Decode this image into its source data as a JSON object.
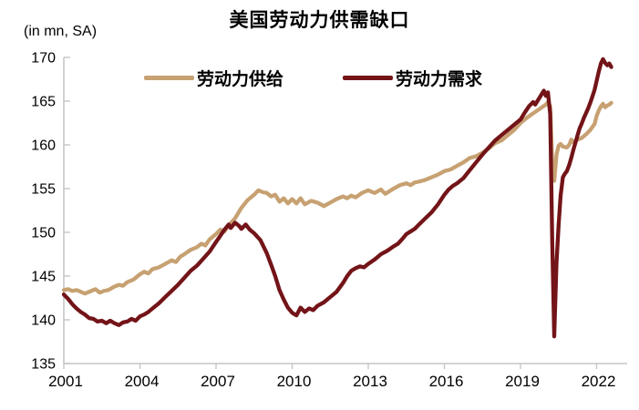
{
  "title": "美国劳动力供需缺口",
  "unit_label": "(in mn, SA)",
  "legend": {
    "supply_label": "劳动力供给",
    "demand_label": "劳动力需求"
  },
  "colors": {
    "supply": "#C7A172",
    "demand": "#731418",
    "axis": "#C6C6C6",
    "text": "#000000"
  },
  "chart_data": {
    "type": "line",
    "title": "美国劳动力供需缺口",
    "ylabel": "(in mn, SA)",
    "xlabel": "",
    "ylim": [
      135,
      170
    ],
    "ytick_step": 5,
    "yticks": [
      135,
      140,
      145,
      150,
      155,
      160,
      165,
      170
    ],
    "xticks": [
      2001,
      2004,
      2007,
      2010,
      2013,
      2016,
      2019,
      2022
    ],
    "xlim": [
      2001,
      2023.3
    ],
    "grid": false,
    "legend_position": "top",
    "series": [
      {
        "name": "劳动力供给",
        "color": "#C7A172",
        "points": [
          [
            2001.0,
            143.4
          ],
          [
            2001.17,
            143.5
          ],
          [
            2001.33,
            143.3
          ],
          [
            2001.5,
            143.4
          ],
          [
            2001.67,
            143.2
          ],
          [
            2001.83,
            143.0
          ],
          [
            2002.0,
            143.2
          ],
          [
            2002.25,
            143.5
          ],
          [
            2002.42,
            143.1
          ],
          [
            2002.58,
            143.3
          ],
          [
            2002.75,
            143.4
          ],
          [
            2003.0,
            143.8
          ],
          [
            2003.17,
            144.0
          ],
          [
            2003.33,
            143.9
          ],
          [
            2003.5,
            144.3
          ],
          [
            2003.75,
            144.6
          ],
          [
            2004.0,
            145.2
          ],
          [
            2004.17,
            145.5
          ],
          [
            2004.33,
            145.3
          ],
          [
            2004.5,
            145.8
          ],
          [
            2004.75,
            146.0
          ],
          [
            2005.0,
            146.4
          ],
          [
            2005.25,
            146.8
          ],
          [
            2005.42,
            146.6
          ],
          [
            2005.58,
            147.2
          ],
          [
            2005.75,
            147.5
          ],
          [
            2006.0,
            148.0
          ],
          [
            2006.25,
            148.3
          ],
          [
            2006.42,
            148.7
          ],
          [
            2006.58,
            148.5
          ],
          [
            2006.75,
            149.2
          ],
          [
            2007.0,
            149.8
          ],
          [
            2007.17,
            150.3
          ],
          [
            2007.33,
            150.1
          ],
          [
            2007.5,
            150.8
          ],
          [
            2007.75,
            151.6
          ],
          [
            2008.0,
            152.8
          ],
          [
            2008.25,
            153.7
          ],
          [
            2008.5,
            154.3
          ],
          [
            2008.67,
            154.8
          ],
          [
            2008.83,
            154.6
          ],
          [
            2009.0,
            154.5
          ],
          [
            2009.17,
            154.1
          ],
          [
            2009.33,
            154.3
          ],
          [
            2009.5,
            153.5
          ],
          [
            2009.67,
            153.9
          ],
          [
            2009.83,
            153.3
          ],
          [
            2010.0,
            153.8
          ],
          [
            2010.17,
            153.3
          ],
          [
            2010.33,
            153.9
          ],
          [
            2010.5,
            153.2
          ],
          [
            2010.75,
            153.6
          ],
          [
            2011.0,
            153.4
          ],
          [
            2011.25,
            153.0
          ],
          [
            2011.5,
            153.4
          ],
          [
            2011.75,
            153.8
          ],
          [
            2012.0,
            154.1
          ],
          [
            2012.17,
            153.9
          ],
          [
            2012.33,
            154.2
          ],
          [
            2012.5,
            154.0
          ],
          [
            2012.75,
            154.5
          ],
          [
            2013.0,
            154.8
          ],
          [
            2013.25,
            154.5
          ],
          [
            2013.5,
            154.9
          ],
          [
            2013.67,
            154.4
          ],
          [
            2013.83,
            154.7
          ],
          [
            2014.0,
            155.0
          ],
          [
            2014.25,
            155.4
          ],
          [
            2014.5,
            155.6
          ],
          [
            2014.67,
            155.4
          ],
          [
            2014.83,
            155.7
          ],
          [
            2015.0,
            155.8
          ],
          [
            2015.25,
            156.0
          ],
          [
            2015.5,
            156.3
          ],
          [
            2015.75,
            156.6
          ],
          [
            2016.0,
            157.0
          ],
          [
            2016.25,
            157.2
          ],
          [
            2016.5,
            157.6
          ],
          [
            2016.75,
            158.0
          ],
          [
            2017.0,
            158.5
          ],
          [
            2017.25,
            158.7
          ],
          [
            2017.5,
            159.1
          ],
          [
            2017.75,
            159.6
          ],
          [
            2018.0,
            160.2
          ],
          [
            2018.25,
            160.5
          ],
          [
            2018.5,
            161.1
          ],
          [
            2018.75,
            161.7
          ],
          [
            2019.0,
            162.5
          ],
          [
            2019.25,
            163.1
          ],
          [
            2019.5,
            163.6
          ],
          [
            2019.75,
            164.1
          ],
          [
            2020.0,
            164.6
          ],
          [
            2020.08,
            164.9
          ],
          [
            2020.17,
            164.4
          ],
          [
            2020.25,
            158.0
          ],
          [
            2020.33,
            155.9
          ],
          [
            2020.42,
            158.9
          ],
          [
            2020.5,
            159.9
          ],
          [
            2020.58,
            160.1
          ],
          [
            2020.67,
            159.8
          ],
          [
            2020.83,
            159.7
          ],
          [
            2020.92,
            160.0
          ],
          [
            2021.0,
            160.6
          ],
          [
            2021.08,
            160.3
          ],
          [
            2021.25,
            160.6
          ],
          [
            2021.42,
            160.8
          ],
          [
            2021.58,
            161.2
          ],
          [
            2021.75,
            161.7
          ],
          [
            2021.92,
            162.4
          ],
          [
            2022.0,
            163.3
          ],
          [
            2022.08,
            163.9
          ],
          [
            2022.17,
            164.4
          ],
          [
            2022.25,
            164.7
          ],
          [
            2022.33,
            164.3
          ],
          [
            2022.42,
            164.5
          ],
          [
            2022.5,
            164.6
          ],
          [
            2022.58,
            164.8
          ]
        ]
      },
      {
        "name": "劳动力需求",
        "color": "#731418",
        "points": [
          [
            2001.0,
            142.9
          ],
          [
            2001.17,
            142.4
          ],
          [
            2001.33,
            141.8
          ],
          [
            2001.5,
            141.3
          ],
          [
            2001.67,
            140.9
          ],
          [
            2001.83,
            140.6
          ],
          [
            2002.0,
            140.2
          ],
          [
            2002.17,
            140.1
          ],
          [
            2002.33,
            139.8
          ],
          [
            2002.5,
            139.9
          ],
          [
            2002.67,
            139.6
          ],
          [
            2002.83,
            139.9
          ],
          [
            2003.0,
            139.6
          ],
          [
            2003.17,
            139.4
          ],
          [
            2003.33,
            139.7
          ],
          [
            2003.5,
            139.8
          ],
          [
            2003.67,
            140.1
          ],
          [
            2003.83,
            139.9
          ],
          [
            2004.0,
            140.4
          ],
          [
            2004.17,
            140.6
          ],
          [
            2004.33,
            140.9
          ],
          [
            2004.5,
            141.3
          ],
          [
            2004.75,
            141.9
          ],
          [
            2005.0,
            142.6
          ],
          [
            2005.25,
            143.3
          ],
          [
            2005.5,
            144.0
          ],
          [
            2005.75,
            144.8
          ],
          [
            2006.0,
            145.6
          ],
          [
            2006.25,
            146.2
          ],
          [
            2006.5,
            147.0
          ],
          [
            2006.75,
            147.8
          ],
          [
            2007.0,
            148.9
          ],
          [
            2007.17,
            149.6
          ],
          [
            2007.33,
            150.3
          ],
          [
            2007.5,
            150.9
          ],
          [
            2007.58,
            150.5
          ],
          [
            2007.75,
            151.1
          ],
          [
            2007.92,
            150.7
          ],
          [
            2008.0,
            150.4
          ],
          [
            2008.17,
            150.9
          ],
          [
            2008.33,
            150.3
          ],
          [
            2008.5,
            149.9
          ],
          [
            2008.75,
            149.1
          ],
          [
            2009.0,
            147.6
          ],
          [
            2009.17,
            146.3
          ],
          [
            2009.33,
            145.0
          ],
          [
            2009.5,
            143.4
          ],
          [
            2009.67,
            142.3
          ],
          [
            2009.83,
            141.4
          ],
          [
            2010.0,
            140.8
          ],
          [
            2010.17,
            140.5
          ],
          [
            2010.33,
            141.4
          ],
          [
            2010.5,
            140.9
          ],
          [
            2010.67,
            141.3
          ],
          [
            2010.83,
            141.1
          ],
          [
            2011.0,
            141.6
          ],
          [
            2011.25,
            142.0
          ],
          [
            2011.5,
            142.6
          ],
          [
            2011.75,
            143.2
          ],
          [
            2012.0,
            144.2
          ],
          [
            2012.17,
            145.0
          ],
          [
            2012.33,
            145.6
          ],
          [
            2012.5,
            145.9
          ],
          [
            2012.67,
            146.1
          ],
          [
            2012.83,
            146.0
          ],
          [
            2013.0,
            146.4
          ],
          [
            2013.25,
            146.9
          ],
          [
            2013.5,
            147.5
          ],
          [
            2013.75,
            147.9
          ],
          [
            2014.0,
            148.4
          ],
          [
            2014.17,
            148.7
          ],
          [
            2014.33,
            149.2
          ],
          [
            2014.5,
            149.8
          ],
          [
            2014.67,
            150.1
          ],
          [
            2014.83,
            150.4
          ],
          [
            2015.0,
            150.9
          ],
          [
            2015.25,
            151.6
          ],
          [
            2015.5,
            152.3
          ],
          [
            2015.75,
            153.2
          ],
          [
            2016.0,
            154.3
          ],
          [
            2016.17,
            154.9
          ],
          [
            2016.33,
            155.3
          ],
          [
            2016.5,
            155.6
          ],
          [
            2016.75,
            156.2
          ],
          [
            2017.0,
            157.1
          ],
          [
            2017.25,
            158.0
          ],
          [
            2017.5,
            158.9
          ],
          [
            2017.75,
            159.7
          ],
          [
            2018.0,
            160.5
          ],
          [
            2018.25,
            161.1
          ],
          [
            2018.5,
            161.7
          ],
          [
            2018.75,
            162.3
          ],
          [
            2019.0,
            162.9
          ],
          [
            2019.17,
            163.7
          ],
          [
            2019.33,
            164.4
          ],
          [
            2019.5,
            164.9
          ],
          [
            2019.58,
            164.6
          ],
          [
            2019.75,
            165.4
          ],
          [
            2019.92,
            166.2
          ],
          [
            2020.0,
            165.6
          ],
          [
            2020.08,
            166.0
          ],
          [
            2020.17,
            163.5
          ],
          [
            2020.25,
            149.0
          ],
          [
            2020.33,
            138.1
          ],
          [
            2020.42,
            146.5
          ],
          [
            2020.5,
            150.8
          ],
          [
            2020.58,
            154.2
          ],
          [
            2020.67,
            156.3
          ],
          [
            2020.75,
            156.7
          ],
          [
            2020.83,
            157.0
          ],
          [
            2020.92,
            157.7
          ],
          [
            2021.0,
            158.5
          ],
          [
            2021.08,
            159.4
          ],
          [
            2021.17,
            160.3
          ],
          [
            2021.25,
            161.1
          ],
          [
            2021.33,
            161.9
          ],
          [
            2021.42,
            162.5
          ],
          [
            2021.5,
            163.1
          ],
          [
            2021.58,
            163.6
          ],
          [
            2021.67,
            164.2
          ],
          [
            2021.75,
            164.8
          ],
          [
            2021.83,
            165.5
          ],
          [
            2021.92,
            166.3
          ],
          [
            2022.0,
            167.3
          ],
          [
            2022.08,
            168.3
          ],
          [
            2022.17,
            169.3
          ],
          [
            2022.25,
            169.8
          ],
          [
            2022.33,
            169.4
          ],
          [
            2022.42,
            169.1
          ],
          [
            2022.5,
            169.3
          ],
          [
            2022.58,
            168.9
          ]
        ]
      }
    ]
  }
}
